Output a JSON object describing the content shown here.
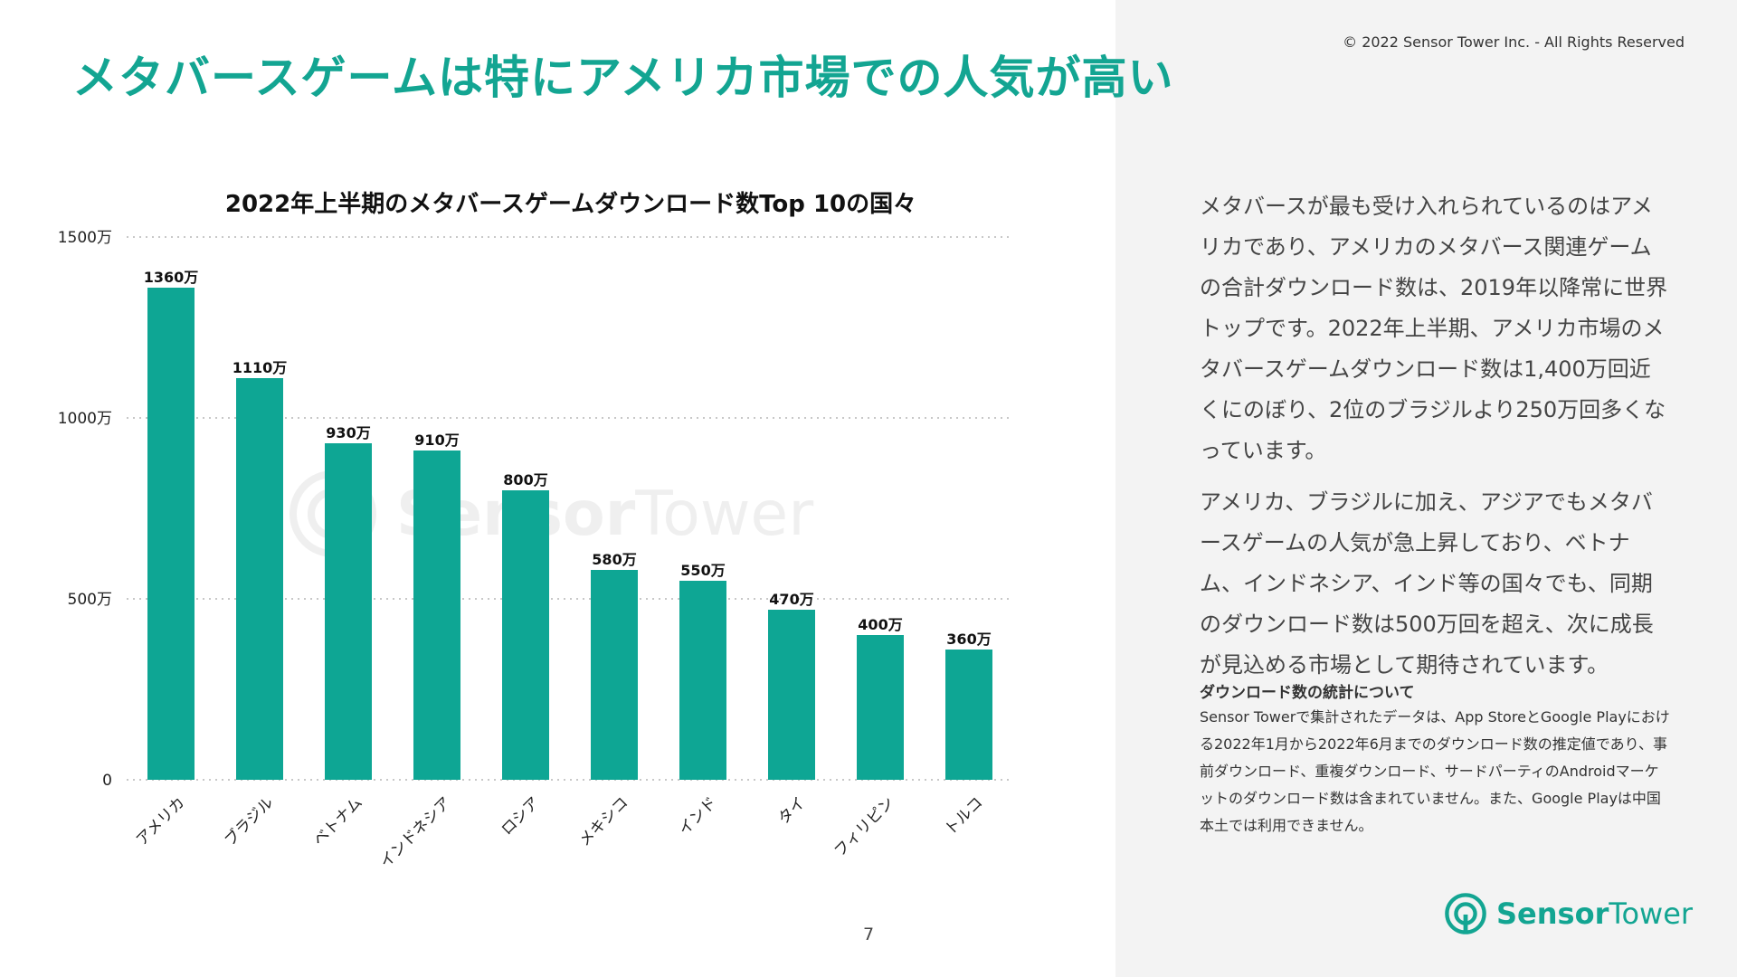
{
  "slide": {
    "title": "メタバースゲームは特にアメリカ市場での人気が高い",
    "copyright": "© 2022 Sensor Tower Inc. - All Rights Reserved",
    "page_number": "7"
  },
  "chart_data": {
    "type": "bar",
    "title": "2022年上半期のメタバースゲームダウンロード数Top 10の国々",
    "categories": [
      "アメリカ",
      "ブラジル",
      "ベトナム",
      "インドネシア",
      "ロシア",
      "メキシコ",
      "インド",
      "タイ",
      "フィリピン",
      "トルコ"
    ],
    "values": [
      1360,
      1110,
      930,
      910,
      800,
      580,
      550,
      470,
      400,
      360
    ],
    "value_labels": [
      "1360万",
      "1110万",
      "930万",
      "910万",
      "800万",
      "580万",
      "550万",
      "470万",
      "400万",
      "360万"
    ],
    "yticks": [
      0,
      500,
      1000,
      1500
    ],
    "ytick_labels": [
      "0",
      "500万",
      "1000万",
      "1500万"
    ],
    "ylim": [
      0,
      1500
    ],
    "xlabel": "",
    "ylabel": "",
    "grid": true,
    "bar_color": "#0ea694"
  },
  "sidebar": {
    "paragraph1": "メタバースが最も受け入れられているのはアメリカであり、アメリカのメタバース関連ゲームの合計ダウンロード数は、2019年以降常に世界トップです。2022年上半期、アメリカ市場のメタバースゲームダウンロード数は1,400万回近くにのぼり、2位のブラジルより250万回多くなっています。",
    "paragraph2": "アメリカ、ブラジルに加え、アジアでもメタバースゲームの人気が急上昇しており、ベトナム、インドネシア、インド等の国々でも、同期のダウンロード数は500万回を超え、次に成長が見込める市場として期待されています。",
    "note_title": "ダウンロード数の統計について",
    "note_body": "Sensor Towerで集計されたデータは、App StoreとGoogle Playにおける2022年1月から2022年6月までのダウンロード数の推定値であり、事前ダウンロード、重複ダウンロード、サードパーティのAndroidマーケットのダウンロード数は含まれていません。また、Google Playは中国本土では利用できません。"
  },
  "brand": {
    "word1": "Sensor",
    "word2": "Tower",
    "icon": "sensor-tower-logo-icon",
    "accent_color": "#13a592"
  },
  "watermark": {
    "word1": "Sensor",
    "word2": "Tower",
    "icon": "sensor-tower-logo-icon"
  }
}
